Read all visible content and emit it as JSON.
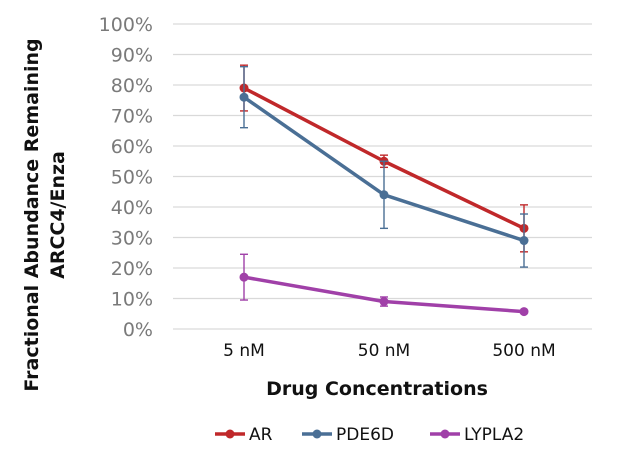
{
  "chart_data": {
    "type": "line",
    "title": "",
    "xlabel": "Drug Concentrations",
    "ylabel": [
      "Fractional Abundance Remaining",
      "ARCC4/Enza"
    ],
    "categories": [
      "5 nM",
      "50 nM",
      "500 nM"
    ],
    "ylim": [
      0,
      100
    ],
    "yticks": [
      "0%",
      "10%",
      "20%",
      "30%",
      "40%",
      "50%",
      "60%",
      "70%",
      "80%",
      "90%",
      "100%"
    ],
    "grid": true,
    "legend": "bottom",
    "series": [
      {
        "name": "AR",
        "color": "#c0282a",
        "values": [
          79,
          55,
          33
        ],
        "errors": [
          7.5,
          2,
          7.7
        ]
      },
      {
        "name": "PDE6D",
        "color": "#4a6f95",
        "values": [
          76,
          44,
          29
        ],
        "errors": [
          10,
          11,
          8.7
        ]
      },
      {
        "name": "LYPLA2",
        "color": "#a040a8",
        "values": [
          17,
          9,
          5.7
        ],
        "errors": [
          7.5,
          1.5,
          0
        ]
      }
    ]
  }
}
